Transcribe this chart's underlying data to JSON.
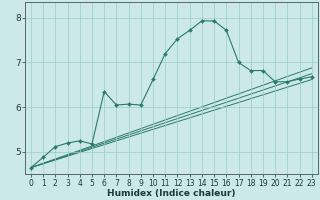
{
  "title": "",
  "xlabel": "Humidex (Indice chaleur)",
  "ylabel": "",
  "background_color": "#cce8e8",
  "line_color": "#2a7a6a",
  "xlim": [
    -0.5,
    23.5
  ],
  "ylim": [
    4.5,
    8.35
  ],
  "yticks": [
    5,
    6,
    7,
    8
  ],
  "xticks": [
    0,
    1,
    2,
    3,
    4,
    5,
    6,
    7,
    8,
    9,
    10,
    11,
    12,
    13,
    14,
    15,
    16,
    17,
    18,
    19,
    20,
    21,
    22,
    23
  ],
  "main_line_x": [
    0,
    1,
    2,
    3,
    4,
    5,
    6,
    7,
    8,
    9,
    10,
    11,
    12,
    13,
    14,
    15,
    16,
    17,
    18,
    19,
    20,
    21,
    22,
    23
  ],
  "main_line_y": [
    4.65,
    4.88,
    5.12,
    5.2,
    5.25,
    5.18,
    6.35,
    6.05,
    6.07,
    6.05,
    6.62,
    7.2,
    7.53,
    7.72,
    7.93,
    7.93,
    7.72,
    7.0,
    6.82,
    6.82,
    6.57,
    6.57,
    6.63,
    6.68
  ],
  "trend_lines": [
    {
      "x": [
        0,
        23
      ],
      "y": [
        4.65,
        6.62
      ]
    },
    {
      "x": [
        0,
        23
      ],
      "y": [
        4.65,
        6.75
      ]
    },
    {
      "x": [
        0,
        23
      ],
      "y": [
        4.65,
        6.88
      ]
    }
  ],
  "grid_color": "#99cccc",
  "tick_fontsize": 5.5,
  "label_fontsize": 6.5,
  "marker": "D",
  "markersize": 2.0
}
